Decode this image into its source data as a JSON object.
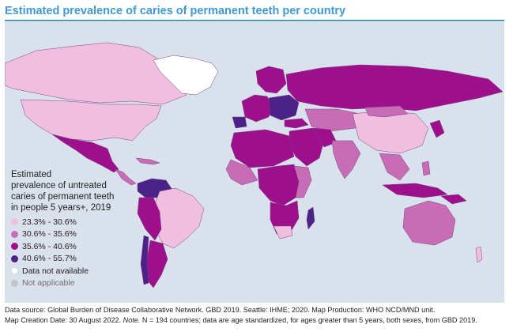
{
  "title": "Estimated prevalence of caries of permanent teeth per country",
  "legend": {
    "title": "Estimated\nprevalence of untreated\ncaries of  permanent teeth\nin people 5 years+, 2019",
    "items": [
      {
        "label": "23.3% - 30.6%",
        "color": "#f0bfe0"
      },
      {
        "label": "30.6% - 35.6%",
        "color": "#c86cb6"
      },
      {
        "label": "35.6% - 40.6%",
        "color": "#9e0f8b"
      },
      {
        "label": "40.6% - 55.7%",
        "color": "#4a2288"
      },
      {
        "label": "Data not available",
        "color": "#ffffff"
      },
      {
        "label": "Not applicable",
        "color": "#c4c4c4"
      }
    ]
  },
  "colors": {
    "ocean": "#d9e1ec",
    "border": "#7a3f86"
  },
  "footer": {
    "line1": "Data source: Global Burden of Disease Collaborative Network. GBD 2019. Seattle: IHME; 2020.  Map Production: WHO NCD/MND unit.",
    "line2_pre": "Map Creation Date: 30 August 2022.  ",
    "line2_note": "Note.",
    "line2_post": " N = 194 countries; data are age standardized, for ages greater than 5 years, both sexes, from GBD 2019."
  }
}
